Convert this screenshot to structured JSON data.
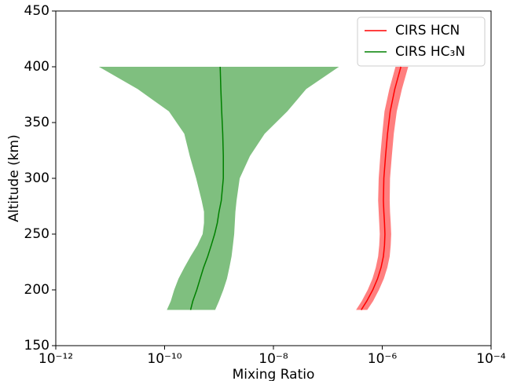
{
  "chart_data": {
    "type": "line",
    "x_label": "Mixing Ratio",
    "y_label": "Altitude (km)",
    "x_log": true,
    "xlim": [
      1e-12,
      0.0001
    ],
    "xticks": [
      {
        "value": 1e-12,
        "label": "10⁻¹²"
      },
      {
        "value": 1e-10,
        "label": "10⁻¹⁰"
      },
      {
        "value": 1e-08,
        "label": "10⁻⁸"
      },
      {
        "value": 1e-06,
        "label": "10⁻⁶"
      },
      {
        "value": 0.0001,
        "label": "10⁻⁴"
      }
    ],
    "ylim": [
      150,
      450
    ],
    "yticks": [
      150,
      200,
      250,
      300,
      350,
      400,
      450
    ],
    "legend": "upper right",
    "band_opacity": 0.5,
    "y": [
      182,
      190,
      200,
      210,
      220,
      230,
      240,
      250,
      260,
      270,
      280,
      300,
      320,
      340,
      360,
      380,
      400
    ],
    "series": [
      {
        "name": "CIRS HCN",
        "color": "#ff0000",
        "values": [
          4.1e-07,
          5.2e-07,
          6.7e-07,
          8.2e-07,
          9.5e-07,
          1.05e-06,
          1.1e-06,
          1.12e-06,
          1.1e-06,
          1.07e-06,
          1.05e-06,
          1.07e-06,
          1.15e-06,
          1.25e-06,
          1.4e-06,
          1.7e-06,
          2.2e-06
        ],
        "lower": [
          3.3e-07,
          4.2e-07,
          5.4e-07,
          6.6e-07,
          7.6e-07,
          8.4e-07,
          8.8e-07,
          9e-07,
          8.8e-07,
          8.6e-07,
          8.4e-07,
          8.6e-07,
          9.2e-07,
          1e-06,
          1.1e-06,
          1.35e-06,
          1.75e-06
        ],
        "upper": [
          5.3e-07,
          6.8e-07,
          8.7e-07,
          1.07e-06,
          1.24e-06,
          1.37e-06,
          1.43e-06,
          1.46e-06,
          1.43e-06,
          1.39e-06,
          1.37e-06,
          1.39e-06,
          1.5e-06,
          1.63e-06,
          1.85e-06,
          2.3e-06,
          3e-06
        ]
      },
      {
        "name": "CIRS HC₃N",
        "color": "#008000",
        "values": [
          3e-10,
          3.3e-10,
          3.9e-10,
          4.5e-10,
          5.2e-10,
          6.2e-10,
          7.2e-10,
          8.3e-10,
          9.3e-10,
          1e-09,
          1.1e-09,
          1.2e-09,
          1.2e-09,
          1.17e-09,
          1.12e-09,
          1.08e-09,
          1.05e-09
        ],
        "lower": [
          1.1e-10,
          1.3e-10,
          1.5e-10,
          1.8e-10,
          2.3e-10,
          3e-10,
          4e-10,
          5e-10,
          5.3e-10,
          5.3e-10,
          4.8e-10,
          3.8e-10,
          2.9e-10,
          2.3e-10,
          1.2e-10,
          3.2e-11,
          6.2e-12
        ],
        "upper": [
          8.5e-10,
          1e-09,
          1.2e-09,
          1.4e-09,
          1.55e-09,
          1.7e-09,
          1.8e-09,
          1.9e-09,
          1.95e-09,
          2e-09,
          2.1e-09,
          2.4e-09,
          3.7e-09,
          6.9e-09,
          1.8e-08,
          4e-08,
          1.6e-07
        ]
      }
    ]
  }
}
